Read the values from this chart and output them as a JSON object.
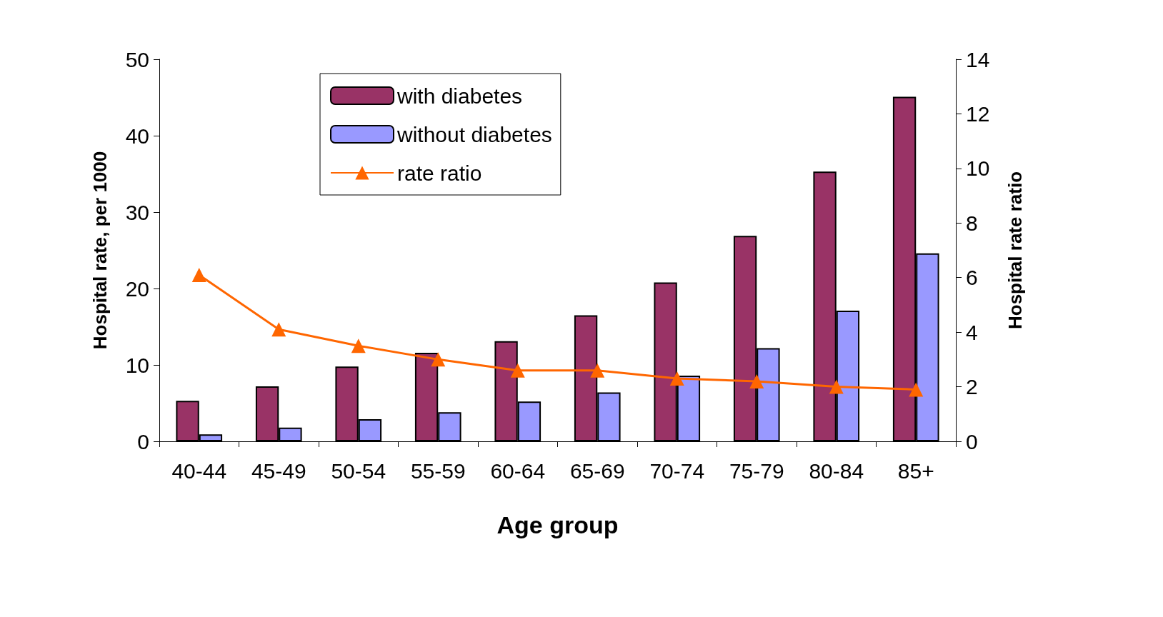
{
  "chart_data": {
    "type": "bar",
    "xlabel": "Age group",
    "ylabel": "Hospital rate, per 1000",
    "y2label": "Hospital rate ratio",
    "categories": [
      "40-44",
      "45-49",
      "50-54",
      "55-59",
      "60-64",
      "65-69",
      "70-74",
      "75-79",
      "80-84",
      "85+"
    ],
    "series": [
      {
        "name": "with diabetes",
        "color": "#993366",
        "values": [
          5.3,
          7.2,
          9.8,
          11.6,
          13.1,
          16.5,
          20.8,
          26.9,
          35.3,
          45.1
        ]
      },
      {
        "name": "without diabetes",
        "color": "#9999ff",
        "values": [
          0.9,
          1.8,
          2.9,
          3.8,
          5.2,
          6.4,
          8.6,
          12.2,
          17.1,
          24.6
        ]
      },
      {
        "name": "rate ratio",
        "type": "line",
        "axis": "y2",
        "color": "#ff6600",
        "marker": "triangle",
        "values": [
          6.1,
          4.1,
          3.5,
          3.0,
          2.6,
          2.6,
          2.3,
          2.2,
          2.0,
          1.9
        ]
      }
    ],
    "ylim": [
      0,
      50
    ],
    "yticks": [
      0,
      10,
      20,
      30,
      40,
      50
    ],
    "y2lim": [
      0,
      14
    ],
    "y2ticks": [
      0,
      2,
      4,
      6,
      8,
      10,
      12,
      14
    ],
    "grid": false,
    "legend": "top"
  }
}
